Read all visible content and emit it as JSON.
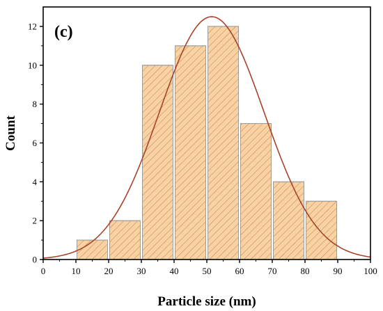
{
  "chart_data": {
    "type": "bar",
    "panel_label": "(c)",
    "xlabel": "Particle size (nm)",
    "ylabel": "Count",
    "xlim": [
      0,
      100
    ],
    "ylim": [
      0,
      13
    ],
    "xticks": [
      0,
      10,
      20,
      30,
      40,
      50,
      60,
      70,
      80,
      90,
      100
    ],
    "yticks": [
      0,
      2,
      4,
      6,
      8,
      10,
      12
    ],
    "bins": [
      {
        "x0": 10,
        "x1": 20,
        "value": 1
      },
      {
        "x0": 20,
        "x1": 30,
        "value": 2
      },
      {
        "x0": 30,
        "x1": 40,
        "value": 10
      },
      {
        "x0": 40,
        "x1": 50,
        "value": 11
      },
      {
        "x0": 50,
        "x1": 60,
        "value": 12
      },
      {
        "x0": 60,
        "x1": 70,
        "value": 7
      },
      {
        "x0": 70,
        "x1": 80,
        "value": 4
      },
      {
        "x0": 80,
        "x1": 90,
        "value": 3
      }
    ],
    "fit_curve": {
      "type": "gaussian",
      "peak_x": 51.5,
      "peak_y": 12.5,
      "sigma": 16
    },
    "colors": {
      "bar_fill": "#f9d2a3",
      "bar_hatch": "#c98a5a",
      "bar_edge": "#9c9c9c",
      "curve": "#a8432a",
      "axis": "#000000"
    },
    "grid": false,
    "legend": "none"
  }
}
